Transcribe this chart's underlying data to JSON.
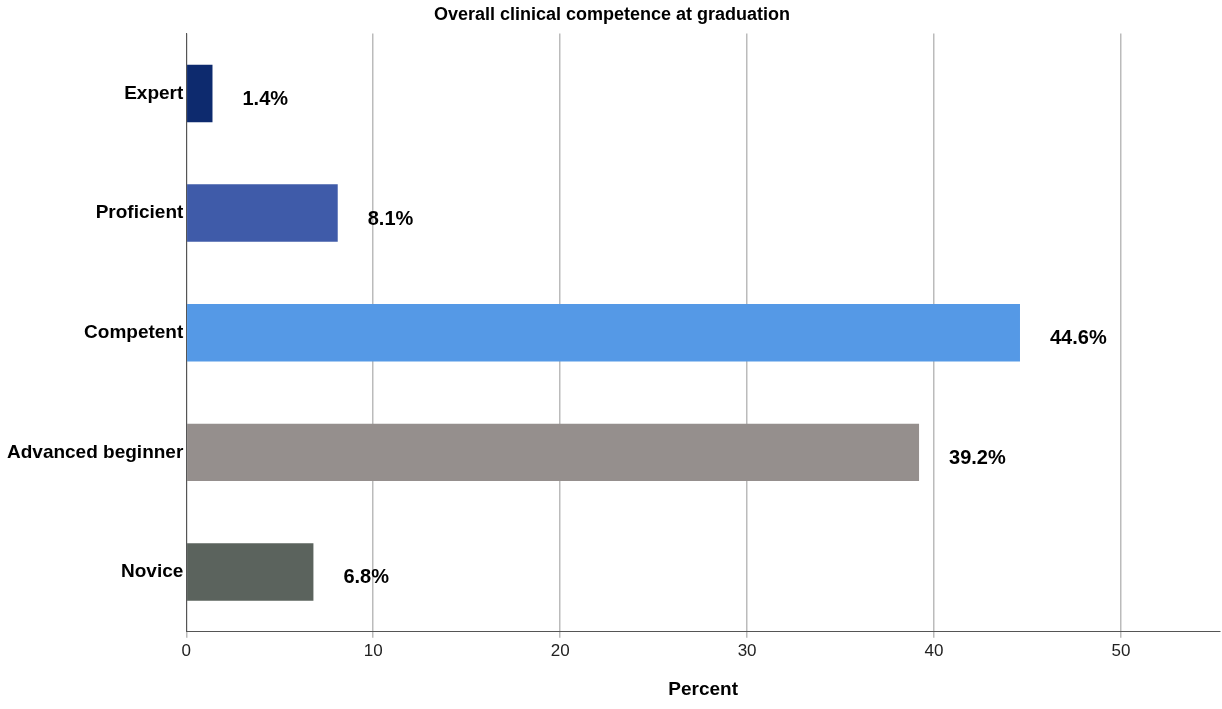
{
  "chart_data": {
    "type": "bar",
    "orientation": "horizontal",
    "title": "Overall clinical competence at graduation",
    "xlabel": "Percent",
    "categories": [
      "Expert",
      "Proficient",
      "Competent",
      "Advanced beginner",
      "Novice"
    ],
    "values": [
      1.4,
      8.1,
      44.6,
      39.2,
      6.8
    ],
    "colors": [
      "#0d2a6e",
      "#3f5ba9",
      "#5599e6",
      "#958f8d",
      "#5b635d"
    ],
    "value_labels": [
      "1.4%",
      "8.1%",
      "44.6%",
      "39.2%",
      "6.8%"
    ],
    "xlim": [
      0,
      55.3
    ],
    "xticks": [
      0,
      10,
      20,
      30,
      40,
      50
    ],
    "grid": "x"
  }
}
